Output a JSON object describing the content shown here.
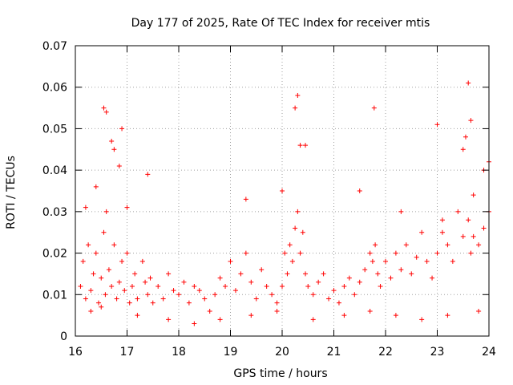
{
  "chart_data": {
    "type": "scatter",
    "title": "Day 177 of 2025, Rate Of TEC Index for receiver mtis",
    "xlabel": "GPS time / hours",
    "ylabel": "ROTI / TECUs",
    "xlim": [
      16,
      24
    ],
    "ylim": [
      0,
      0.07
    ],
    "xticks": [
      16,
      17,
      18,
      19,
      20,
      21,
      22,
      23,
      24
    ],
    "xtick_labels": [
      "16",
      "17",
      "18",
      "19",
      "20",
      "21",
      "22",
      "23",
      "24"
    ],
    "yticks": [
      0,
      0.01,
      0.02,
      0.03,
      0.04,
      0.05,
      0.06,
      0.07
    ],
    "ytick_labels": [
      "0",
      "0.01",
      "0.02",
      "0.03",
      "0.04",
      "0.05",
      "0.06",
      "0.07"
    ],
    "grid": true,
    "marker": "+",
    "color": "#ff0000",
    "series": [
      {
        "name": "ROTI",
        "x": [
          16.1,
          16.15,
          16.2,
          16.25,
          16.3,
          16.35,
          16.4,
          16.45,
          16.5,
          16.55,
          16.58,
          16.6,
          16.65,
          16.7,
          16.75,
          16.8,
          16.85,
          16.9,
          16.95,
          17.0,
          17.05,
          17.1,
          17.15,
          17.2,
          17.3,
          17.35,
          17.4,
          17.45,
          17.5,
          17.6,
          17.7,
          17.8,
          17.9,
          18.0,
          18.1,
          18.2,
          18.3,
          18.4,
          18.5,
          18.6,
          18.7,
          18.8,
          18.9,
          19.0,
          19.1,
          19.2,
          19.3,
          19.4,
          19.5,
          19.6,
          19.7,
          19.8,
          19.9,
          20.0,
          20.05,
          20.1,
          20.15,
          20.2,
          20.25,
          20.3,
          20.35,
          20.4,
          20.45,
          20.5,
          20.6,
          20.7,
          20.8,
          20.9,
          21.0,
          21.1,
          21.2,
          21.3,
          21.4,
          21.5,
          21.6,
          21.7,
          21.75,
          21.8,
          21.85,
          21.9,
          22.0,
          22.1,
          22.2,
          22.3,
          22.4,
          22.5,
          22.6,
          22.7,
          22.8,
          22.9,
          23.0,
          23.1,
          23.2,
          23.3,
          23.4,
          23.5,
          23.6,
          23.65,
          23.7,
          23.8,
          23.9,
          24.0,
          16.2,
          16.4,
          16.55,
          16.7,
          16.75,
          16.85,
          17.4,
          20.25,
          20.3,
          20.35,
          21.78,
          23.0,
          23.6,
          23.65,
          23.5,
          23.55,
          23.9,
          24.0,
          16.6,
          16.9,
          17.0,
          19.3,
          20.0,
          20.45,
          21.5,
          22.3,
          23.1,
          23.7,
          16.3,
          16.5,
          17.2,
          17.8,
          18.3,
          18.8,
          19.4,
          19.9,
          20.6,
          21.2,
          21.7,
          22.2,
          22.7,
          23.2,
          23.8
        ],
        "y": [
          0.012,
          0.018,
          0.009,
          0.022,
          0.011,
          0.015,
          0.02,
          0.008,
          0.014,
          0.025,
          0.01,
          0.03,
          0.016,
          0.012,
          0.022,
          0.009,
          0.013,
          0.018,
          0.011,
          0.02,
          0.008,
          0.012,
          0.015,
          0.009,
          0.018,
          0.013,
          0.01,
          0.014,
          0.008,
          0.012,
          0.009,
          0.015,
          0.011,
          0.01,
          0.013,
          0.008,
          0.012,
          0.011,
          0.009,
          0.006,
          0.01,
          0.014,
          0.012,
          0.018,
          0.011,
          0.015,
          0.02,
          0.013,
          0.009,
          0.016,
          0.012,
          0.01,
          0.008,
          0.012,
          0.02,
          0.015,
          0.022,
          0.018,
          0.026,
          0.03,
          0.02,
          0.025,
          0.015,
          0.012,
          0.01,
          0.013,
          0.015,
          0.009,
          0.011,
          0.008,
          0.012,
          0.014,
          0.01,
          0.013,
          0.016,
          0.02,
          0.018,
          0.022,
          0.015,
          0.012,
          0.018,
          0.014,
          0.02,
          0.016,
          0.022,
          0.015,
          0.019,
          0.025,
          0.018,
          0.014,
          0.02,
          0.025,
          0.022,
          0.018,
          0.03,
          0.024,
          0.028,
          0.02,
          0.024,
          0.022,
          0.026,
          0.03,
          0.031,
          0.036,
          0.055,
          0.047,
          0.045,
          0.041,
          0.039,
          0.055,
          0.058,
          0.046,
          0.055,
          0.051,
          0.061,
          0.052,
          0.045,
          0.048,
          0.04,
          0.042,
          0.054,
          0.05,
          0.031,
          0.033,
          0.035,
          0.046,
          0.035,
          0.03,
          0.028,
          0.034,
          0.006,
          0.007,
          0.005,
          0.004,
          0.003,
          0.004,
          0.005,
          0.006,
          0.004,
          0.005,
          0.006,
          0.005,
          0.004,
          0.005,
          0.006
        ]
      }
    ]
  }
}
